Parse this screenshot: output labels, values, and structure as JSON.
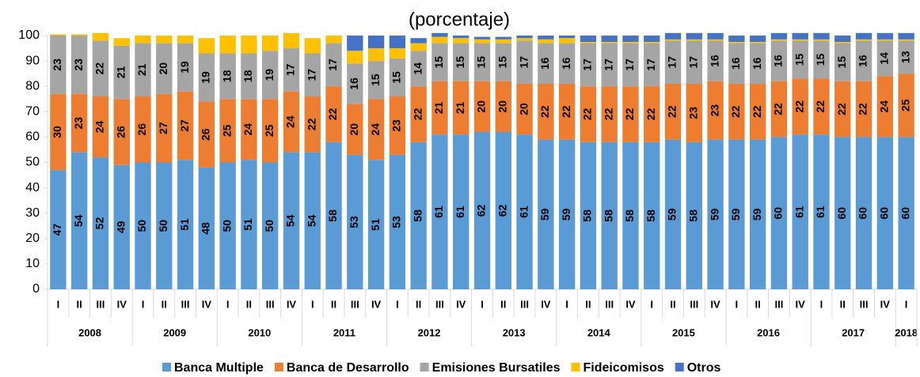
{
  "chart_data": {
    "type": "stacked_bar",
    "title": "(porcentaje)",
    "categories": [
      "I",
      "II",
      "III",
      "IV",
      "I",
      "II",
      "III",
      "IV",
      "I",
      "II",
      "III",
      "IV",
      "I",
      "II",
      "III",
      "IV",
      "I",
      "II",
      "III",
      "IV",
      "I",
      "II",
      "III",
      "IV",
      "I",
      "II",
      "III",
      "IV",
      "I",
      "II",
      "III",
      "IV",
      "I",
      "II",
      "III",
      "IV",
      "I",
      "II",
      "III",
      "IV",
      "I"
    ],
    "years": [
      "2008",
      "2009",
      "2010",
      "2011",
      "2012",
      "2013",
      "2014",
      "2015",
      "2016",
      "2017",
      "2018"
    ],
    "ylim": [
      0,
      100
    ],
    "yticks": [
      0,
      10,
      20,
      30,
      40,
      50,
      60,
      70,
      80,
      90,
      100
    ],
    "series": [
      {
        "name": "Banca Multiple",
        "color": "#5b9bd5",
        "data_labels": true,
        "values": [
          47,
          54,
          52,
          49,
          50,
          50,
          51,
          48,
          50,
          51,
          50,
          54,
          54,
          58,
          53,
          51,
          53,
          58,
          61,
          61,
          62,
          62,
          61,
          59,
          59,
          58,
          58,
          58,
          58,
          59,
          58,
          59,
          59,
          59,
          60,
          61,
          61,
          60,
          60,
          60,
          60
        ]
      },
      {
        "name": "Banca de Desarrollo",
        "color": "#ed7d31",
        "data_labels": true,
        "values": [
          30,
          23,
          24,
          26,
          26,
          27,
          27,
          26,
          25,
          24,
          25,
          24,
          22,
          22,
          20,
          24,
          23,
          22,
          21,
          21,
          20,
          20,
          20,
          22,
          22,
          22,
          22,
          22,
          22,
          22,
          23,
          23,
          22,
          22,
          22,
          22,
          22,
          22,
          22,
          24,
          25
        ]
      },
      {
        "name": "Emisiones Bursatiles",
        "color": "#a5a5a5",
        "data_labels": true,
        "values": [
          23,
          23,
          22,
          21,
          21,
          20,
          19,
          19,
          18,
          18,
          19,
          17,
          17,
          17,
          16,
          15,
          15,
          14,
          15,
          15,
          15,
          15,
          17,
          16,
          16,
          17,
          17,
          17,
          17,
          17,
          17,
          16,
          16,
          16,
          16,
          15,
          15,
          15,
          16,
          14,
          13
        ]
      },
      {
        "name": "Fideicomisos",
        "color": "#ffc000",
        "data_labels": false,
        "values": [
          0.5,
          0.5,
          3,
          3,
          3,
          3,
          3,
          6,
          7,
          7,
          6,
          6,
          6,
          3,
          5,
          5,
          4,
          3,
          2.5,
          2,
          1.5,
          1.5,
          1,
          1.5,
          2,
          0.5,
          0.5,
          0.5,
          0.5,
          0.5,
          0.5,
          0.5,
          0.5,
          0.5,
          0.5,
          0.5,
          0.5,
          0.5,
          0.5,
          0.5,
          0.5
        ]
      },
      {
        "name": "Otros",
        "color": "#4472c4",
        "data_labels": false,
        "values": [
          0,
          0,
          0,
          0,
          0,
          0,
          0,
          0,
          0,
          0,
          0,
          0,
          0,
          0,
          6,
          5,
          5,
          2,
          1.5,
          1,
          1,
          1,
          1,
          1.5,
          1,
          2.5,
          2.5,
          2.5,
          2.5,
          2.5,
          2.5,
          2.5,
          2.5,
          2.5,
          2.5,
          2.5,
          2.5,
          2.5,
          2.5,
          2.5,
          2.5
        ]
      }
    ]
  }
}
